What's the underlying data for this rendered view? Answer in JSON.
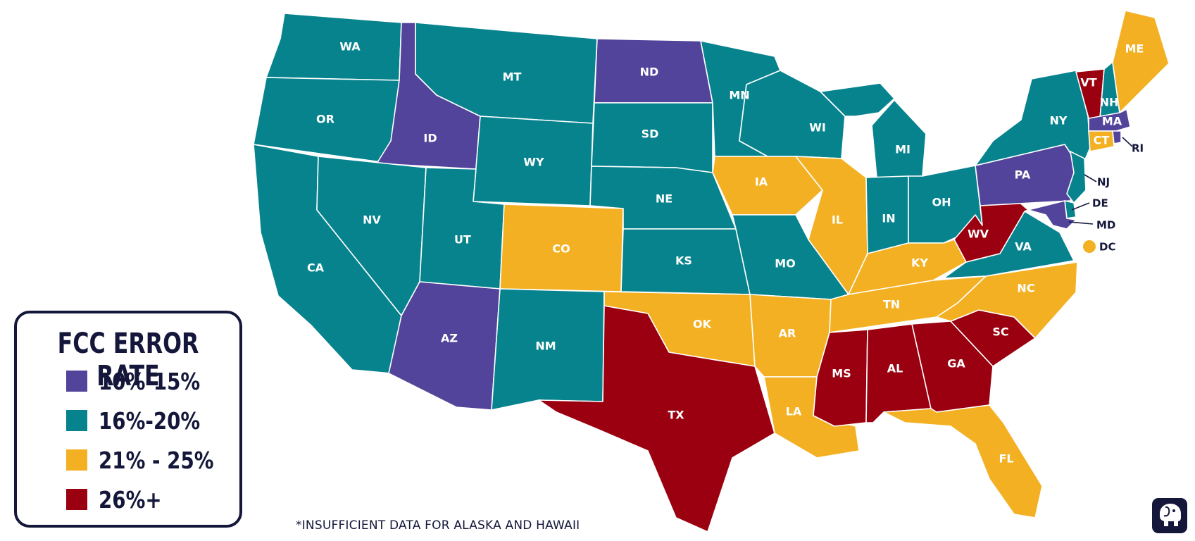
{
  "legend": {
    "title": "FCC ERROR RATE",
    "items": [
      {
        "label": "10%-15%",
        "color": "#52449b"
      },
      {
        "label": "16%-20%",
        "color": "#07838e"
      },
      {
        "label": "21% - 25%",
        "color": "#f3b022"
      },
      {
        "label": "26%+",
        "color": "#9a000f"
      }
    ]
  },
  "footnote": "*INSUFFICIENT DATA FOR ALASKA AND HAWAII",
  "states": {
    "WA": {
      "label": "WA",
      "color": "#07838e"
    },
    "OR": {
      "label": "OR",
      "color": "#07838e"
    },
    "CA": {
      "label": "CA",
      "color": "#07838e"
    },
    "ID": {
      "label": "ID",
      "color": "#52449b"
    },
    "NV": {
      "label": "NV",
      "color": "#07838e"
    },
    "MT": {
      "label": "MT",
      "color": "#07838e"
    },
    "WY": {
      "label": "WY",
      "color": "#07838e"
    },
    "UT": {
      "label": "UT",
      "color": "#07838e"
    },
    "AZ": {
      "label": "AZ",
      "color": "#52449b"
    },
    "CO": {
      "label": "CO",
      "color": "#f3b022"
    },
    "NM": {
      "label": "NM",
      "color": "#07838e"
    },
    "ND": {
      "label": "ND",
      "color": "#52449b"
    },
    "SD": {
      "label": "SD",
      "color": "#07838e"
    },
    "NE": {
      "label": "NE",
      "color": "#07838e"
    },
    "KS": {
      "label": "KS",
      "color": "#07838e"
    },
    "OK": {
      "label": "OK",
      "color": "#f3b022"
    },
    "TX": {
      "label": "TX",
      "color": "#9a000f"
    },
    "MN": {
      "label": "MN",
      "color": "#07838e"
    },
    "IA": {
      "label": "IA",
      "color": "#f3b022"
    },
    "MO": {
      "label": "MO",
      "color": "#07838e"
    },
    "AR": {
      "label": "AR",
      "color": "#f3b022"
    },
    "LA": {
      "label": "LA",
      "color": "#f3b022"
    },
    "WI": {
      "label": "WI",
      "color": "#07838e"
    },
    "IL": {
      "label": "IL",
      "color": "#f3b022"
    },
    "MI": {
      "label": "MI",
      "color": "#07838e"
    },
    "IN": {
      "label": "IN",
      "color": "#07838e"
    },
    "OH": {
      "label": "OH",
      "color": "#07838e"
    },
    "KY": {
      "label": "KY",
      "color": "#f3b022"
    },
    "TN": {
      "label": "TN",
      "color": "#f3b022"
    },
    "MS": {
      "label": "MS",
      "color": "#9a000f"
    },
    "AL": {
      "label": "AL",
      "color": "#9a000f"
    },
    "GA": {
      "label": "GA",
      "color": "#9a000f"
    },
    "FL": {
      "label": "FL",
      "color": "#f3b022"
    },
    "SC": {
      "label": "SC",
      "color": "#9a000f"
    },
    "NC": {
      "label": "NC",
      "color": "#f3b022"
    },
    "VA": {
      "label": "VA",
      "color": "#07838e"
    },
    "WV": {
      "label": "WV",
      "color": "#9a000f"
    },
    "PA": {
      "label": "PA",
      "color": "#52449b"
    },
    "NY": {
      "label": "NY",
      "color": "#07838e"
    },
    "VT": {
      "label": "VT",
      "color": "#9a000f"
    },
    "NH": {
      "label": "NH",
      "color": "#07838e"
    },
    "ME": {
      "label": "ME",
      "color": "#f3b022"
    },
    "MA": {
      "label": "MA",
      "color": "#52449b"
    },
    "CT": {
      "label": "CT",
      "color": "#f3b022"
    },
    "RI": {
      "label": "RI",
      "color": "#52449b"
    },
    "NJ": {
      "label": "NJ",
      "color": "#07838e"
    },
    "DE": {
      "label": "DE",
      "color": "#07838e"
    },
    "MD": {
      "label": "MD",
      "color": "#52449b"
    },
    "DC": {
      "label": "DC",
      "color": "#f3b022"
    }
  },
  "logo": {
    "icon": "elephant-icon",
    "color": "#14173a"
  }
}
